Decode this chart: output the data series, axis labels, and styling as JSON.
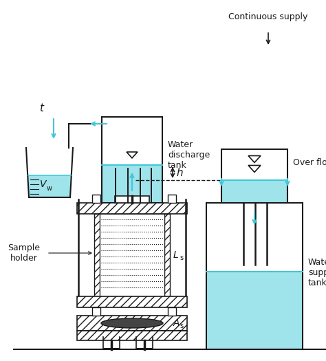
{
  "bg_color": "#ffffff",
  "line_color": "#1a1a1a",
  "water_color": "#40c8d8",
  "water_alpha": 0.5,
  "fig_width": 4.74,
  "fig_height": 5.25,
  "dpi": 100,
  "labels": {
    "continuous_supply": "Continuous supply",
    "over_flow": "Over flow",
    "water_supply_tank": "Water\nsupply\ntank",
    "water_discharge_tank": "Water\ndischarge\ntank",
    "sample_holder": "Sample\nholder",
    "t": "t",
    "h": "h",
    "ls": "L",
    "ls_sub": "s",
    "as_": "A",
    "as_sub": "s",
    "vw": "V",
    "vw_sub": "w"
  }
}
